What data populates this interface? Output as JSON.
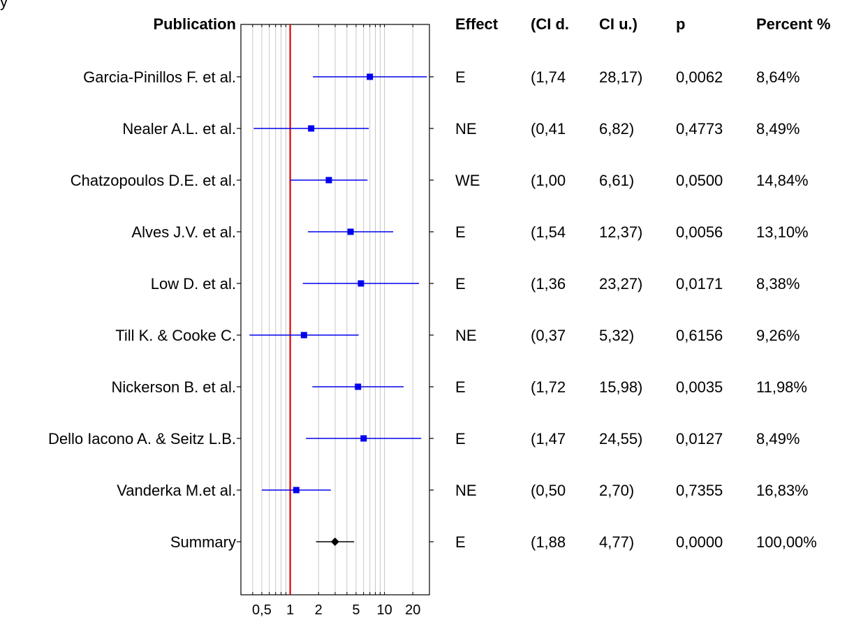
{
  "chart_data": {
    "type": "forest",
    "x_scale": "log",
    "xlim": [
      0.3,
      30
    ],
    "reference_line": 1,
    "x_tick_labels": [
      {
        "value": 0.5,
        "label": "0,5"
      },
      {
        "value": 1,
        "label": "1"
      },
      {
        "value": 2,
        "label": "2"
      },
      {
        "value": 5,
        "label": "5"
      },
      {
        "value": 10,
        "label": "10"
      },
      {
        "value": 20,
        "label": "20"
      }
    ],
    "minor_ticks": [
      0.3,
      0.4,
      0.5,
      0.6,
      0.7,
      0.8,
      0.9,
      1,
      2,
      3,
      4,
      5,
      6,
      7,
      8,
      9,
      10,
      20,
      30
    ],
    "headers": {
      "publication": "Publication",
      "effect": "Effect",
      "ci_lower": "(CI d.",
      "ci_upper": "CI u.)",
      "p": "p",
      "percent": "Percent %"
    },
    "corner_mark": "y",
    "rows": [
      {
        "publication": "Garcia-Pinillos F. et al.",
        "effect": "E",
        "ci_lower_label": "(1,74",
        "ci_upper_label": "28,17)",
        "p": "0,0062",
        "percent": "8,64%",
        "estimate": 7.0,
        "ci_lower": 1.74,
        "ci_upper": 28.17,
        "kind": "study"
      },
      {
        "publication": "Nealer A.L. et al.",
        "effect": "NE",
        "ci_lower_label": "(0,41",
        "ci_upper_label": "6,82)",
        "p": "0,4773",
        "percent": "8,49%",
        "estimate": 1.67,
        "ci_lower": 0.41,
        "ci_upper": 6.82,
        "kind": "study"
      },
      {
        "publication": "Chatzopoulos D.E. et al.",
        "effect": "WE",
        "ci_lower_label": "(1,00",
        "ci_upper_label": "6,61)",
        "p": "0,0500",
        "percent": "14,84%",
        "estimate": 2.57,
        "ci_lower": 1.0,
        "ci_upper": 6.61,
        "kind": "study"
      },
      {
        "publication": "Alves J.V. et al.",
        "effect": "E",
        "ci_lower_label": "(1,54",
        "ci_upper_label": "12,37)",
        "p": "0,0056",
        "percent": "13,10%",
        "estimate": 4.37,
        "ci_lower": 1.54,
        "ci_upper": 12.37,
        "kind": "study"
      },
      {
        "publication": "Low D. et al.",
        "effect": "E",
        "ci_lower_label": "(1,36",
        "ci_upper_label": "23,27)",
        "p": "0,0171",
        "percent": "8,38%",
        "estimate": 5.63,
        "ci_lower": 1.36,
        "ci_upper": 23.27,
        "kind": "study"
      },
      {
        "publication": "Till K. & Cooke C.",
        "effect": "NE",
        "ci_lower_label": "(0,37",
        "ci_upper_label": "5,32)",
        "p": "0,6156",
        "percent": "9,26%",
        "estimate": 1.4,
        "ci_lower": 0.37,
        "ci_upper": 5.32,
        "kind": "study"
      },
      {
        "publication": "Nickerson B. et al.",
        "effect": "E",
        "ci_lower_label": "(1,72",
        "ci_upper_label": "15,98)",
        "p": "0,0035",
        "percent": "11,98%",
        "estimate": 5.24,
        "ci_lower": 1.72,
        "ci_upper": 15.98,
        "kind": "study"
      },
      {
        "publication": "Dello Iacono A. &  Seitz L.B.",
        "effect": "E",
        "ci_lower_label": "(1,47",
        "ci_upper_label": "24,55)",
        "p": "0,0127",
        "percent": "8,49%",
        "estimate": 6.01,
        "ci_lower": 1.47,
        "ci_upper": 24.55,
        "kind": "study"
      },
      {
        "publication": "Vanderka M.et al.",
        "effect": "NE",
        "ci_lower_label": "(0,50",
        "ci_upper_label": "2,70)",
        "p": "0,7355",
        "percent": "16,83%",
        "estimate": 1.16,
        "ci_lower": 0.5,
        "ci_upper": 2.7,
        "kind": "study"
      },
      {
        "publication": "Summary",
        "effect": "E",
        "ci_lower_label": "(1,88",
        "ci_upper_label": "4,77)",
        "p": "0,0000",
        "percent": "100,00%",
        "estimate": 2.99,
        "ci_lower": 1.88,
        "ci_upper": 4.77,
        "kind": "summary"
      }
    ],
    "colors": {
      "study": "#0000ee",
      "summary": "#000000",
      "reference_line": "#dd0000",
      "grid": "#c8c8c8",
      "frame": "#000000"
    }
  }
}
